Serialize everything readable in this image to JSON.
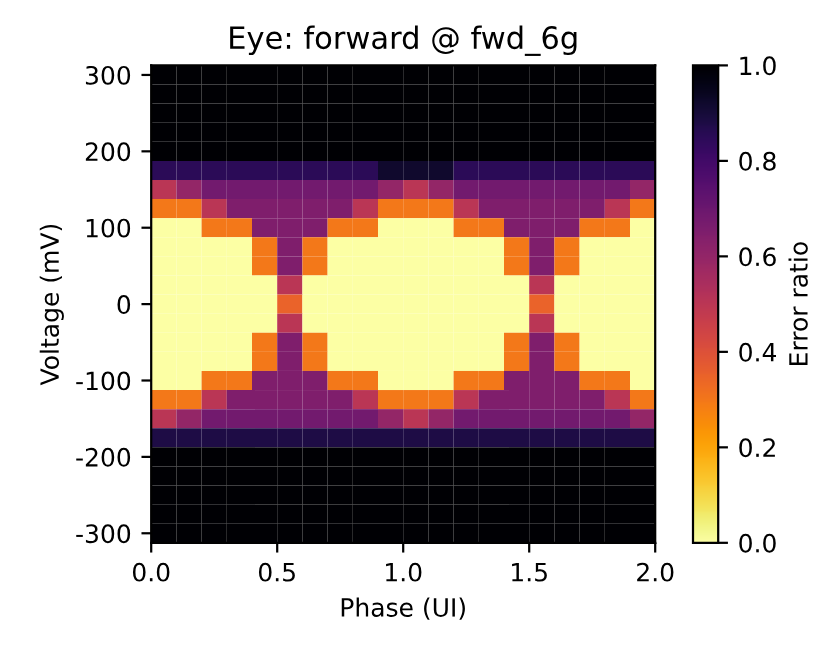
{
  "chart_data": {
    "type": "heatmap",
    "title": "Eye: forward @ fwd_6g",
    "xlabel": "Phase (UI)",
    "ylabel": "Voltage (mV)",
    "clabel": "Error ratio",
    "x": [
      0.05,
      0.15,
      0.25,
      0.35,
      0.45,
      0.55,
      0.65,
      0.75,
      0.85,
      0.95,
      1.05,
      1.15,
      1.25,
      1.35,
      1.45,
      1.55,
      1.65,
      1.75,
      1.85,
      1.95
    ],
    "y": [
      300,
      275,
      250,
      225,
      200,
      175,
      150,
      125,
      100,
      75,
      50,
      25,
      0,
      -25,
      -50,
      -75,
      -100,
      -125,
      -150,
      -175,
      -200,
      -225,
      -250,
      -275,
      -300
    ],
    "cells": [
      [
        1,
        1,
        1,
        1,
        1,
        1,
        1,
        1,
        1,
        1,
        1,
        1,
        1,
        1,
        1,
        1,
        1,
        1,
        1,
        1
      ],
      [
        1,
        1,
        1,
        1,
        1,
        1,
        1,
        1,
        1,
        1,
        1,
        1,
        1,
        1,
        1,
        1,
        1,
        1,
        1,
        1
      ],
      [
        1,
        1,
        1,
        1,
        1,
        1,
        1,
        1,
        1,
        1,
        1,
        1,
        1,
        1,
        1,
        1,
        1,
        1,
        1,
        1
      ],
      [
        1,
        1,
        1,
        1,
        1,
        1,
        1,
        1,
        1,
        1,
        1,
        1,
        1,
        1,
        1,
        1,
        1,
        1,
        1,
        1
      ],
      [
        1,
        1,
        1,
        1,
        1,
        1,
        1,
        1,
        1,
        1,
        1,
        1,
        1,
        1,
        1,
        1,
        1,
        1,
        1,
        1
      ],
      [
        0.85,
        0.85,
        0.85,
        0.85,
        0.85,
        0.85,
        0.85,
        0.85,
        0.85,
        0.92,
        0.92,
        0.92,
        0.85,
        0.85,
        0.85,
        0.85,
        0.85,
        0.85,
        0.85,
        0.85
      ],
      [
        0.5,
        0.6,
        0.68,
        0.68,
        0.68,
        0.68,
        0.68,
        0.68,
        0.68,
        0.6,
        0.5,
        0.6,
        0.68,
        0.68,
        0.68,
        0.68,
        0.68,
        0.68,
        0.68,
        0.6
      ],
      [
        0.3,
        0.3,
        0.5,
        0.65,
        0.65,
        0.65,
        0.65,
        0.65,
        0.5,
        0.3,
        0.3,
        0.3,
        0.5,
        0.65,
        0.65,
        0.65,
        0.65,
        0.65,
        0.5,
        0.3
      ],
      [
        0,
        0,
        0.3,
        0.3,
        0.65,
        0.65,
        0.65,
        0.3,
        0.3,
        0,
        0,
        0,
        0.3,
        0.3,
        0.65,
        0.65,
        0.65,
        0.3,
        0.3,
        0
      ],
      [
        0,
        0,
        0,
        0,
        0.3,
        0.65,
        0.3,
        0,
        0,
        0,
        0,
        0,
        0,
        0,
        0.3,
        0.65,
        0.3,
        0,
        0,
        0
      ],
      [
        0,
        0,
        0,
        0,
        0.3,
        0.65,
        0.3,
        0,
        0,
        0,
        0,
        0,
        0,
        0,
        0.3,
        0.65,
        0.3,
        0,
        0,
        0
      ],
      [
        0,
        0,
        0,
        0,
        0,
        0.5,
        0,
        0,
        0,
        0,
        0,
        0,
        0,
        0,
        0,
        0.5,
        0,
        0,
        0,
        0
      ],
      [
        0,
        0,
        0,
        0,
        0,
        0.35,
        0,
        0,
        0,
        0,
        0,
        0,
        0,
        0,
        0,
        0.35,
        0,
        0,
        0,
        0
      ],
      [
        0,
        0,
        0,
        0,
        0,
        0.5,
        0,
        0,
        0,
        0,
        0,
        0,
        0,
        0,
        0,
        0.5,
        0,
        0,
        0,
        0
      ],
      [
        0,
        0,
        0,
        0,
        0.3,
        0.65,
        0.3,
        0,
        0,
        0,
        0,
        0,
        0,
        0,
        0.3,
        0.65,
        0.3,
        0,
        0,
        0
      ],
      [
        0,
        0,
        0,
        0,
        0.3,
        0.65,
        0.3,
        0,
        0,
        0,
        0,
        0,
        0,
        0,
        0.3,
        0.65,
        0.3,
        0,
        0,
        0
      ],
      [
        0,
        0,
        0.3,
        0.3,
        0.65,
        0.65,
        0.65,
        0.3,
        0.3,
        0,
        0,
        0,
        0.3,
        0.3,
        0.65,
        0.65,
        0.65,
        0.3,
        0.3,
        0
      ],
      [
        0.3,
        0.3,
        0.5,
        0.65,
        0.65,
        0.65,
        0.65,
        0.65,
        0.5,
        0.3,
        0.3,
        0.3,
        0.5,
        0.65,
        0.65,
        0.65,
        0.65,
        0.65,
        0.5,
        0.3
      ],
      [
        0.5,
        0.6,
        0.68,
        0.68,
        0.68,
        0.68,
        0.68,
        0.68,
        0.68,
        0.6,
        0.5,
        0.6,
        0.68,
        0.68,
        0.68,
        0.68,
        0.68,
        0.68,
        0.68,
        0.6
      ],
      [
        0.88,
        0.88,
        0.88,
        0.88,
        0.88,
        0.88,
        0.88,
        0.88,
        0.88,
        0.88,
        0.88,
        0.88,
        0.88,
        0.88,
        0.88,
        0.88,
        0.88,
        0.88,
        0.88,
        0.88
      ],
      [
        1,
        1,
        1,
        1,
        1,
        1,
        1,
        1,
        1,
        1,
        1,
        1,
        1,
        1,
        1,
        1,
        1,
        1,
        1,
        1
      ],
      [
        1,
        1,
        1,
        1,
        1,
        1,
        1,
        1,
        1,
        1,
        1,
        1,
        1,
        1,
        1,
        1,
        1,
        1,
        1,
        1
      ],
      [
        1,
        1,
        1,
        1,
        1,
        1,
        1,
        1,
        1,
        1,
        1,
        1,
        1,
        1,
        1,
        1,
        1,
        1,
        1,
        1
      ],
      [
        1,
        1,
        1,
        1,
        1,
        1,
        1,
        1,
        1,
        1,
        1,
        1,
        1,
        1,
        1,
        1,
        1,
        1,
        1,
        1
      ],
      [
        1,
        1,
        1,
        1,
        1,
        1,
        1,
        1,
        1,
        1,
        1,
        1,
        1,
        1,
        1,
        1,
        1,
        1,
        1,
        1
      ]
    ],
    "xlim": [
      0,
      2
    ],
    "xticks": [
      {
        "value": 0,
        "label": "0.0"
      },
      0.5,
      {
        "value": 1,
        "label": "1.0"
      },
      1.5,
      {
        "value": 2,
        "label": "2.0"
      }
    ],
    "ylim": [
      -312.5,
      312.5
    ],
    "yticks": [
      -300,
      -200,
      -100,
      0,
      100,
      200,
      300
    ],
    "clim": [
      0,
      1
    ],
    "cticks": [
      {
        "value": 0,
        "label": "0.0"
      },
      0.2,
      0.4,
      0.6,
      0.8,
      {
        "value": 1,
        "label": "1.0"
      }
    ]
  }
}
